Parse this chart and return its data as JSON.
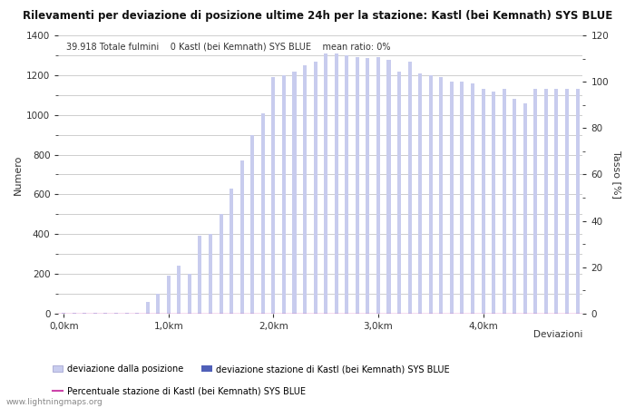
{
  "title": "Rilevamenti per deviazione di posizione ultime 24h per la stazione: Kastl (bei Kemnath) SYS BLUE",
  "subtitle": "39.918 Totale fulmini    0 Kastl (bei Kemnath) SYS BLUE    mean ratio: 0%",
  "xlabel_bottom": "Deviazioni",
  "ylabel_left": "Numero",
  "ylabel_right": "Tasso [%]",
  "watermark": "www.lightningmaps.org",
  "ylim_left": [
    0,
    1400
  ],
  "ylim_right": [
    0,
    120
  ],
  "xtick_labels": [
    "0,0km",
    "1,0km",
    "2,0km",
    "3,0km",
    "4,0km"
  ],
  "xtick_positions": [
    0,
    10,
    20,
    30,
    40
  ],
  "bar_color_light": "#c8ccee",
  "bar_color_dark": "#5060b8",
  "line_color": "#cc44aa",
  "bg_color": "#ffffff",
  "grid_color": "#bbbbbb",
  "text_color": "#333333",
  "bar_values": [
    2,
    1,
    1,
    1,
    1,
    2,
    3,
    5,
    60,
    100,
    190,
    240,
    200,
    390,
    400,
    500,
    630,
    770,
    900,
    1010,
    1190,
    1200,
    1220,
    1250,
    1270,
    1310,
    1310,
    1300,
    1290,
    1285,
    1290,
    1280,
    1220,
    1270,
    1210,
    1200,
    1190,
    1170,
    1170,
    1160,
    1130,
    1120,
    1130,
    1080,
    1060,
    1130,
    1130,
    1130,
    1130,
    1130
  ],
  "station_bar_values": [
    0,
    0,
    0,
    0,
    0,
    0,
    0,
    0,
    0,
    0,
    0,
    0,
    0,
    0,
    0,
    0,
    0,
    0,
    0,
    0,
    0,
    0,
    0,
    0,
    0,
    0,
    0,
    0,
    0,
    0,
    0,
    0,
    0,
    0,
    0,
    0,
    0,
    0,
    0,
    0,
    0,
    0,
    0,
    0,
    0,
    0,
    0,
    0,
    0,
    0
  ],
  "legend_labels": [
    "deviazione dalla posizione",
    "deviazione stazione di Kastl (bei Kemnath) SYS BLUE",
    "Percentuale stazione di Kastl (bei Kemnath) SYS BLUE"
  ],
  "n_bars": 50
}
